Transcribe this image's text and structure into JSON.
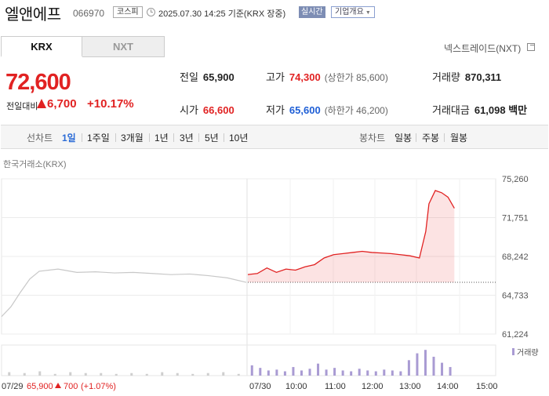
{
  "header": {
    "stock_name": "엘앤에프",
    "stock_code": "066970",
    "market": "코스피",
    "timestamp": "2025.07.30 14:25 기준(KRX 장중)",
    "realtime_label": "실시간",
    "overview_label": "기업개요",
    "icons": {
      "clock": "clock-icon",
      "caret": "caret-down-icon"
    }
  },
  "exchange_tabs": [
    {
      "label": "KRX",
      "active": true
    },
    {
      "label": "NXT",
      "active": false
    }
  ],
  "nextrade_link": "넥스트레이드(NXT)",
  "quote": {
    "price": "72,600",
    "change_label": "전일대비",
    "change": "6,700",
    "change_pct": "+10.17%",
    "direction": "up"
  },
  "stats": {
    "prev_close": {
      "label": "전일",
      "value": "65,900"
    },
    "high": {
      "label": "고가",
      "value": "74,300",
      "sub": "(상한가 85,600)"
    },
    "volume": {
      "label": "거래량",
      "value": "870,311"
    },
    "open": {
      "label": "시가",
      "value": "66,600"
    },
    "low": {
      "label": "저가",
      "value": "65,600",
      "sub": "(하한가 46,200)"
    },
    "amount": {
      "label": "거래대금",
      "value": "61,098 백만"
    }
  },
  "chart_tabs": {
    "line_label": "선차트",
    "line_periods": [
      "1일",
      "1주일",
      "3개월",
      "1년",
      "3년",
      "5년",
      "10년"
    ],
    "active": "1일",
    "candle_label": "봉차트",
    "candle_periods": [
      "일봉",
      "주봉",
      "월봉"
    ]
  },
  "colors": {
    "up": "#e12222",
    "down": "#1f5fd6",
    "accent": "#2b6bd6",
    "prev_day": "#c8c8c8",
    "volume": "#a99bd3"
  },
  "chart_data": {
    "type": "line",
    "title": "한국거래소(KRX)",
    "y_ticks": [
      "75,260",
      "71,751",
      "68,242",
      "64,733",
      "61,224"
    ],
    "ylim": [
      61224,
      75260
    ],
    "prev_close": 65900,
    "x_labels": [
      "07/30",
      "10:00",
      "11:00",
      "12:00",
      "13:00",
      "14:00",
      "15:00"
    ],
    "footer_prev_day": {
      "date": "07/29",
      "close": "65,900",
      "change": "700",
      "pct": "(+1.07%)"
    },
    "volume_legend": "거래량",
    "series": [
      {
        "name": "07/29",
        "x": [
          "09:00",
          "09:15",
          "09:30",
          "09:45",
          "10:00",
          "10:30",
          "11:00",
          "11:30",
          "12:00",
          "12:30",
          "13:00",
          "13:30",
          "14:00",
          "14:30",
          "15:00",
          "15:30"
        ],
        "values": [
          62800,
          63700,
          65000,
          66200,
          66900,
          67100,
          66800,
          66850,
          66750,
          66800,
          66700,
          66600,
          66650,
          66500,
          66300,
          65900
        ]
      },
      {
        "name": "07/30",
        "x": [
          "09:00",
          "09:15",
          "09:30",
          "09:45",
          "10:00",
          "10:15",
          "10:30",
          "10:45",
          "11:00",
          "11:15",
          "11:30",
          "11:45",
          "12:00",
          "12:15",
          "12:30",
          "12:45",
          "13:00",
          "13:15",
          "13:30",
          "13:40",
          "13:45",
          "13:55",
          "14:05",
          "14:15",
          "14:25"
        ],
        "values": [
          66600,
          66700,
          67200,
          66800,
          67100,
          67000,
          67300,
          67500,
          68100,
          68400,
          68500,
          68600,
          68700,
          68600,
          68550,
          68500,
          68400,
          68300,
          68100,
          70500,
          73000,
          74200,
          74000,
          73600,
          72600
        ]
      }
    ],
    "volume": {
      "prev_day": [
        4,
        3,
        5,
        2,
        4,
        3,
        3,
        2,
        3,
        2,
        4,
        3,
        2,
        3,
        4,
        2
      ],
      "today": [
        12,
        9,
        6,
        7,
        5,
        10,
        6,
        8,
        14,
        7,
        9,
        6,
        5,
        8,
        6,
        5,
        7,
        6,
        5,
        18,
        26,
        30,
        22,
        15,
        10
      ]
    }
  }
}
